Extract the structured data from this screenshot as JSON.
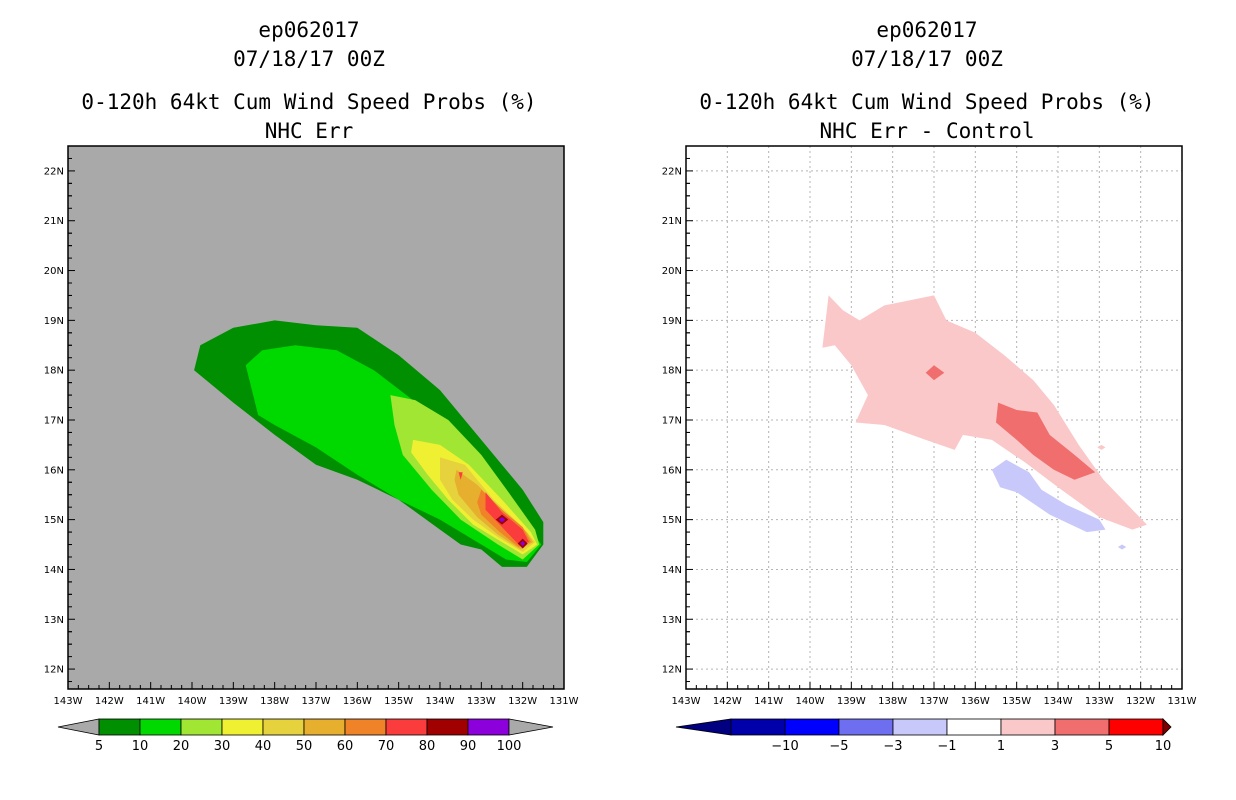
{
  "panels": [
    {
      "storm_id": "ep062017",
      "datetime": "07/18/17 00Z",
      "product": "0-120h 64kt Cum Wind Speed Probs (%)",
      "subtitle": "NHC Err"
    },
    {
      "storm_id": "ep062017",
      "datetime": "07/18/17 00Z",
      "product": "0-120h 64kt Cum Wind Speed Probs (%)",
      "subtitle": "NHC Err - Control"
    }
  ],
  "chart_data": [
    {
      "type": "heatmap",
      "title": "0-120h 64kt Cum Wind Speed Probs (%)",
      "subtitle": "NHC Err",
      "x_ticks": [
        "143W",
        "142W",
        "141W",
        "140W",
        "139W",
        "138W",
        "137W",
        "136W",
        "135W",
        "134W",
        "133W",
        "132W",
        "131W"
      ],
      "y_ticks": [
        "12N",
        "13N",
        "14N",
        "15N",
        "16N",
        "17N",
        "18N",
        "19N",
        "20N",
        "21N",
        "22N"
      ],
      "xlim": [
        -143,
        -131
      ],
      "ylim": [
        11.6,
        22.5
      ],
      "grid": false,
      "background_color": "#a9a9a9",
      "colorbar": {
        "labels": [
          "5",
          "10",
          "20",
          "30",
          "40",
          "50",
          "60",
          "70",
          "80",
          "90",
          "100"
        ],
        "colors": [
          "#008f00",
          "#00d900",
          "#a0e632",
          "#f0f032",
          "#e6d23c",
          "#e6af2d",
          "#f08228",
          "#fa3c3c",
          "#a00000",
          "#8c00dc"
        ],
        "end_color": "#a9a9a9"
      },
      "contours": [
        {
          "level": 5,
          "color": "#008f00",
          "points": [
            [
              -139.95,
              18.0
            ],
            [
              -139.8,
              18.5
            ],
            [
              -139.0,
              18.85
            ],
            [
              -138.0,
              19.0
            ],
            [
              -137.0,
              18.9
            ],
            [
              -136.0,
              18.85
            ],
            [
              -135.0,
              18.3
            ],
            [
              -134.0,
              17.6
            ],
            [
              -133.0,
              16.6
            ],
            [
              -132.0,
              15.6
            ],
            [
              -131.5,
              14.95
            ],
            [
              -131.5,
              14.5
            ],
            [
              -131.9,
              14.05
            ],
            [
              -132.5,
              14.05
            ],
            [
              -133.0,
              14.4
            ],
            [
              -133.5,
              14.5
            ],
            [
              -134.0,
              14.8
            ],
            [
              -135.0,
              15.4
            ],
            [
              -136.0,
              15.8
            ],
            [
              -137.0,
              16.1
            ],
            [
              -138.0,
              16.7
            ],
            [
              -139.0,
              17.35
            ]
          ]
        },
        {
          "level": 10,
          "color": "#00d900",
          "points": [
            [
              -138.7,
              18.1
            ],
            [
              -138.3,
              18.4
            ],
            [
              -137.5,
              18.5
            ],
            [
              -136.5,
              18.4
            ],
            [
              -135.6,
              18.0
            ],
            [
              -134.5,
              17.3
            ],
            [
              -133.5,
              16.4
            ],
            [
              -132.6,
              15.55
            ],
            [
              -131.9,
              14.9
            ],
            [
              -131.55,
              14.5
            ],
            [
              -131.9,
              14.15
            ],
            [
              -132.4,
              14.2
            ],
            [
              -133.0,
              14.5
            ],
            [
              -134.0,
              15.0
            ],
            [
              -135.0,
              15.4
            ],
            [
              -136.0,
              15.9
            ],
            [
              -137.0,
              16.45
            ],
            [
              -138.0,
              16.9
            ],
            [
              -138.4,
              17.1
            ]
          ]
        },
        {
          "level": 20,
          "color": "#a0e632",
          "points": [
            [
              -135.2,
              17.5
            ],
            [
              -134.6,
              17.4
            ],
            [
              -133.8,
              17.0
            ],
            [
              -133.0,
              16.3
            ],
            [
              -132.3,
              15.5
            ],
            [
              -131.7,
              14.8
            ],
            [
              -131.6,
              14.5
            ],
            [
              -132.0,
              14.2
            ],
            [
              -132.6,
              14.5
            ],
            [
              -133.5,
              15.0
            ],
            [
              -134.2,
              15.6
            ],
            [
              -134.9,
              16.3
            ],
            [
              -135.1,
              16.9
            ]
          ]
        },
        {
          "level": 30,
          "color": "#f0f032",
          "points": [
            [
              -134.65,
              16.6
            ],
            [
              -134.0,
              16.5
            ],
            [
              -133.3,
              16.1
            ],
            [
              -132.5,
              15.4
            ],
            [
              -131.8,
              14.75
            ],
            [
              -131.65,
              14.5
            ],
            [
              -132.0,
              14.3
            ],
            [
              -132.6,
              14.6
            ],
            [
              -133.2,
              14.9
            ],
            [
              -133.8,
              15.4
            ],
            [
              -134.3,
              15.9
            ],
            [
              -134.7,
              16.35
            ]
          ]
        },
        {
          "level": 40,
          "color": "#e6d23c",
          "points": [
            [
              -134.0,
              16.25
            ],
            [
              -133.4,
              16.1
            ],
            [
              -132.7,
              15.4
            ],
            [
              -132.0,
              14.85
            ],
            [
              -131.7,
              14.55
            ],
            [
              -132.0,
              14.35
            ],
            [
              -132.6,
              14.65
            ],
            [
              -133.2,
              15.0
            ],
            [
              -133.7,
              15.4
            ],
            [
              -134.0,
              15.8
            ]
          ]
        },
        {
          "level": 50,
          "color": "#e6af2d",
          "points": [
            [
              -133.6,
              16.0
            ],
            [
              -133.1,
              15.7
            ],
            [
              -132.5,
              15.2
            ],
            [
              -131.9,
              14.75
            ],
            [
              -131.75,
              14.55
            ],
            [
              -132.05,
              14.4
            ],
            [
              -132.6,
              14.7
            ],
            [
              -133.1,
              15.05
            ],
            [
              -133.55,
              15.5
            ],
            [
              -133.65,
              15.8
            ]
          ]
        },
        {
          "level": 60,
          "color": "#f08228",
          "points": [
            [
              -133.0,
              15.6
            ],
            [
              -132.5,
              15.2
            ],
            [
              -132.0,
              14.85
            ],
            [
              -131.8,
              14.55
            ],
            [
              -132.1,
              14.45
            ],
            [
              -132.55,
              14.75
            ],
            [
              -133.0,
              15.1
            ],
            [
              -133.1,
              15.35
            ]
          ]
        },
        {
          "level": 70,
          "color": "#fa3c3c",
          "points": [
            [
              -132.9,
              15.55
            ],
            [
              -132.5,
              15.15
            ],
            [
              -132.0,
              14.8
            ],
            [
              -131.85,
              14.55
            ],
            [
              -132.1,
              14.5
            ],
            [
              -132.5,
              14.85
            ],
            [
              -132.9,
              15.2
            ]
          ]
        },
        {
          "level": 70,
          "color": "#fa3c3c",
          "points": [
            [
              -133.55,
              15.95
            ],
            [
              -133.45,
              15.95
            ],
            [
              -133.5,
              15.8
            ]
          ]
        },
        {
          "level": 80,
          "color": "#a00000",
          "points": [
            [
              -132.5,
              15.1
            ],
            [
              -132.35,
              15.0
            ],
            [
              -132.5,
              14.9
            ],
            [
              -132.65,
              15.0
            ]
          ]
        },
        {
          "level": 80,
          "color": "#a00000",
          "points": [
            [
              -132.0,
              14.62
            ],
            [
              -131.88,
              14.52
            ],
            [
              -132.0,
              14.42
            ],
            [
              -132.12,
              14.52
            ]
          ]
        },
        {
          "level": 90,
          "color": "#8c00dc",
          "points": [
            [
              -132.5,
              15.05
            ],
            [
              -132.42,
              15.0
            ],
            [
              -132.5,
              14.95
            ],
            [
              -132.58,
              15.0
            ]
          ]
        },
        {
          "level": 90,
          "color": "#8c00dc",
          "points": [
            [
              -132.0,
              14.57
            ],
            [
              -131.94,
              14.52
            ],
            [
              -132.0,
              14.47
            ],
            [
              -132.06,
              14.52
            ]
          ]
        }
      ]
    },
    {
      "type": "heatmap",
      "title": "0-120h 64kt Cum Wind Speed Probs (%)",
      "subtitle": "NHC Err - Control",
      "x_ticks": [
        "143W",
        "142W",
        "141W",
        "140W",
        "139W",
        "138W",
        "137W",
        "136W",
        "135W",
        "134W",
        "133W",
        "132W",
        "131W"
      ],
      "y_ticks": [
        "12N",
        "13N",
        "14N",
        "15N",
        "16N",
        "17N",
        "18N",
        "19N",
        "20N",
        "21N",
        "22N"
      ],
      "xlim": [
        -143,
        -131
      ],
      "ylim": [
        11.6,
        22.5
      ],
      "grid": true,
      "background_color": "#ffffff",
      "colorbar": {
        "labels": [
          "-10",
          "-5",
          "-3",
          "-1",
          "1",
          "3",
          "5",
          "10"
        ],
        "colors": [
          "#0000aa",
          "#0000ff",
          "#6e6ef0",
          "#c8c8fa",
          "#ffffff",
          "#fac8c8",
          "#f06e6e",
          "#ff0000"
        ],
        "end_colors": [
          "#000080",
          "#7a0000"
        ]
      },
      "contours": [
        {
          "level": 1,
          "color": "#fac8c8",
          "points": [
            [
              -139.55,
              19.5
            ],
            [
              -139.2,
              19.2
            ],
            [
              -138.8,
              19.0
            ],
            [
              -138.2,
              19.3
            ],
            [
              -137.0,
              19.5
            ],
            [
              -136.7,
              19.0
            ],
            [
              -136.0,
              18.75
            ],
            [
              -135.3,
              18.3
            ],
            [
              -134.6,
              17.8
            ],
            [
              -134.1,
              17.3
            ],
            [
              -133.5,
              16.5
            ],
            [
              -132.9,
              15.8
            ],
            [
              -132.2,
              15.2
            ],
            [
              -131.85,
              14.9
            ],
            [
              -132.2,
              14.8
            ],
            [
              -133.0,
              15.05
            ],
            [
              -134.0,
              15.65
            ],
            [
              -134.8,
              16.15
            ],
            [
              -135.6,
              16.6
            ],
            [
              -136.3,
              16.7
            ],
            [
              -136.5,
              16.4
            ],
            [
              -137.2,
              16.6
            ],
            [
              -138.2,
              16.9
            ],
            [
              -138.9,
              16.95
            ],
            [
              -138.6,
              17.5
            ],
            [
              -139.0,
              18.1
            ],
            [
              -139.4,
              18.5
            ],
            [
              -139.7,
              18.45
            ]
          ]
        },
        {
          "level": 3,
          "color": "#f06e6e",
          "points": [
            [
              -135.45,
              17.35
            ],
            [
              -135.0,
              17.2
            ],
            [
              -134.5,
              17.15
            ],
            [
              -134.2,
              16.7
            ],
            [
              -133.6,
              16.3
            ],
            [
              -133.1,
              15.95
            ],
            [
              -133.6,
              15.8
            ],
            [
              -134.1,
              16.0
            ],
            [
              -134.6,
              16.3
            ],
            [
              -135.0,
              16.6
            ],
            [
              -135.5,
              16.95
            ]
          ]
        },
        {
          "level": 3,
          "color": "#f06e6e",
          "points": [
            [
              -137.0,
              18.1
            ],
            [
              -136.75,
              17.95
            ],
            [
              -137.0,
              17.8
            ],
            [
              -137.2,
              17.95
            ]
          ]
        },
        {
          "level": -1,
          "color": "#c8c8fa",
          "points": [
            [
              -135.6,
              16.0
            ],
            [
              -135.25,
              16.2
            ],
            [
              -134.7,
              15.95
            ],
            [
              -134.4,
              15.6
            ],
            [
              -133.8,
              15.3
            ],
            [
              -133.0,
              15.0
            ],
            [
              -132.85,
              14.8
            ],
            [
              -133.3,
              14.75
            ],
            [
              -134.2,
              15.1
            ],
            [
              -135.0,
              15.55
            ],
            [
              -135.4,
              15.65
            ]
          ]
        },
        {
          "level": -1,
          "color": "#c8c8fa",
          "points": [
            [
              -132.45,
              14.5
            ],
            [
              -132.35,
              14.45
            ],
            [
              -132.45,
              14.4
            ],
            [
              -132.55,
              14.45
            ]
          ]
        },
        {
          "level": 1,
          "color": "#fac8c8",
          "points": [
            [
              -132.95,
              16.5
            ],
            [
              -132.85,
              16.45
            ],
            [
              -132.95,
              16.4
            ],
            [
              -133.05,
              16.45
            ]
          ]
        }
      ]
    }
  ]
}
